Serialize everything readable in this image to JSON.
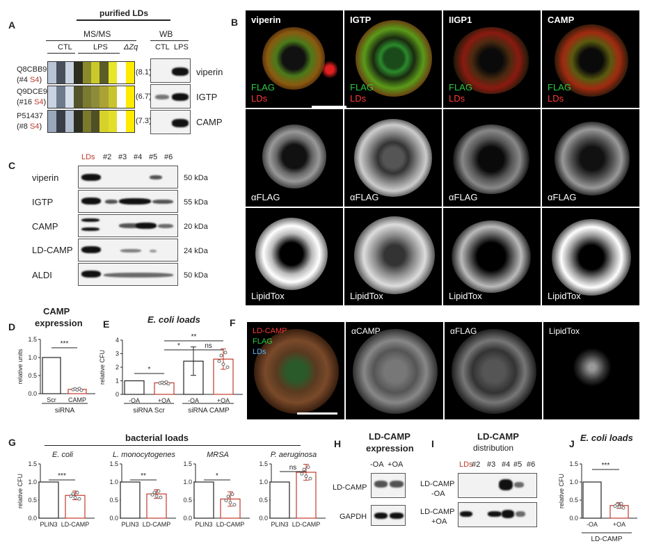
{
  "panelA": {
    "letter": "A",
    "header": "purified LDs",
    "msms": "MS/MS",
    "wb": "WB",
    "ctl": "CTL",
    "lps": "LPS",
    "dz": "ΔZq",
    "rows": [
      {
        "id": "Q8CBB9",
        "sub": "(#4 ",
        "s4": "S4",
        "close": ")",
        "dz": "(8.1)",
        "protein": "viperin"
      },
      {
        "id": "Q9DCE9",
        "sub": "(#16 ",
        "s4": "S4",
        "close": ")",
        "dz": "(6.7)",
        "protein": "IGTP"
      },
      {
        "id": "P51437",
        "sub": "(#8 ",
        "s4": "S4",
        "close": ")",
        "dz": "(7.3)",
        "protein": "CAMP"
      }
    ]
  },
  "panelB": {
    "letter": "B",
    "cols": [
      "viperin",
      "IGTP",
      "IIGP1",
      "CAMP"
    ],
    "flag": "FLAG",
    "lds": "LDs",
    "aflag": "αFLAG",
    "lipidtox": "LipidTox"
  },
  "panelC": {
    "letter": "C",
    "lanes": [
      "LDs",
      "#2",
      "#3",
      "#4",
      "#5",
      "#6"
    ],
    "rows": [
      {
        "name": "viperin",
        "kda": "50 kDa"
      },
      {
        "name": "IGTP",
        "kda": "55 kDa"
      },
      {
        "name": "CAMP",
        "kda": "20 kDa"
      },
      {
        "name": "LD-CAMP",
        "kda": "24 kDa"
      },
      {
        "name": "ALDI",
        "kda": "50 kDa"
      }
    ]
  },
  "panelD": {
    "letter": "D",
    "title1": "CAMP",
    "title2": "expression",
    "ylabel": "relative units",
    "sig": "***",
    "xgroup": "siRNA"
  },
  "panelE": {
    "letter": "E",
    "title": "E. coli loads",
    "ylabel": "relative CFU",
    "g1": "siRNA Scr",
    "g2": "siRNA CAMP",
    "sig1": "*",
    "sig2": "**",
    "sig3": "*",
    "sig4": "ns"
  },
  "panelF": {
    "letter": "F",
    "ldcamp": "LD-CAMP",
    "flag": "FLAG",
    "lds": "LDs",
    "acamp": "αCAMP",
    "aflag": "αFLAG",
    "lipidtox": "LipidTox"
  },
  "panelG": {
    "letter": "G",
    "title": "bacterial loads",
    "ylabel": "relative CFU",
    "subs": [
      "E. coli",
      "L. monocytogenes",
      "MRSA",
      "P. aeruginosa"
    ],
    "sigs": [
      "***",
      "**",
      "*",
      "ns"
    ]
  },
  "panelH": {
    "letter": "H",
    "title1": "LD-CAMP",
    "title2": "expression",
    "lanes": "-OA  +OA",
    "row1": "LD-CAMP",
    "row2": "GAPDH"
  },
  "panelI": {
    "letter": "I",
    "title1": "LD-CAMP",
    "title2": "distribution",
    "lanes": [
      "LDs",
      "#2",
      "#3",
      "#4",
      "#5",
      "#6"
    ],
    "row1a": "LD-CAMP",
    "row1b": "-OA",
    "row2a": "LD-CAMP",
    "row2b": "+OA"
  },
  "panelJ": {
    "letter": "J",
    "title": "E. coli loads",
    "ylabel": "relative CFU",
    "sig": "***",
    "xgroup": "LD-CAMP"
  },
  "chart_data": [
    {
      "type": "bar",
      "panel": "D",
      "title": "CAMP expression",
      "ylabel": "relative units",
      "categories": [
        "Scr",
        "CAMP"
      ],
      "values": [
        1.0,
        0.12
      ],
      "ylim": [
        0,
        1.5
      ],
      "yticks": [
        "0.0",
        "0.5",
        "1.0",
        "1.5"
      ]
    },
    {
      "type": "bar",
      "panel": "E",
      "title": "E. coli loads",
      "ylabel": "relative CFU",
      "categories": [
        "-OA",
        "+OA",
        "-OA",
        "+OA"
      ],
      "values": [
        1.0,
        0.85,
        2.45,
        2.6
      ],
      "errors": [
        0,
        0.08,
        1.05,
        0.75
      ],
      "ylim": [
        0,
        4
      ],
      "yticks": [
        "0",
        "1",
        "2",
        "3",
        "4"
      ]
    },
    {
      "type": "bar",
      "panel": "G",
      "subplots": [
        {
          "title": "E. coli",
          "categories": [
            "PLIN3",
            "LD-CAMP"
          ],
          "values": [
            1.0,
            0.63
          ],
          "errors": [
            0,
            0.12
          ]
        },
        {
          "title": "L. monocytogenes",
          "categories": [
            "PLIN3",
            "LD-CAMP"
          ],
          "values": [
            1.0,
            0.67
          ],
          "errors": [
            0,
            0.12
          ]
        },
        {
          "title": "MRSA",
          "categories": [
            "PLIN3",
            "LD-CAMP"
          ],
          "values": [
            1.0,
            0.53
          ],
          "errors": [
            0,
            0.2
          ]
        },
        {
          "title": "P. aeruginosa",
          "categories": [
            "PLIN3",
            "LD-CAMP"
          ],
          "values": [
            1.0,
            1.27
          ],
          "errors": [
            0,
            0.22
          ]
        }
      ],
      "ylabel": "relative CFU",
      "ylim": [
        0,
        1.5
      ],
      "yticks": [
        "0.0",
        "0.5",
        "1.0",
        "1.5"
      ]
    },
    {
      "type": "bar",
      "panel": "J",
      "title": "E. coli loads",
      "ylabel": "relative CFU",
      "categories": [
        "-OA",
        "+OA"
      ],
      "values": [
        1.0,
        0.35
      ],
      "errors": [
        0,
        0.08
      ],
      "ylim": [
        0,
        1.5
      ],
      "yticks": [
        "0.0",
        "0.5",
        "1.0",
        "1.5"
      ]
    }
  ]
}
